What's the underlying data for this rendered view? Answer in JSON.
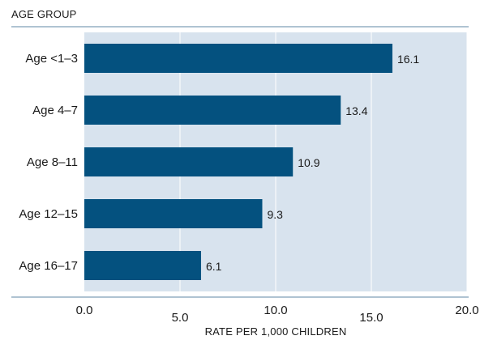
{
  "chart_data": {
    "type": "bar",
    "orientation": "horizontal",
    "ylabel": "AGE GROUP",
    "xlabel": "RATE PER 1,000 CHILDREN",
    "categories": [
      "Age <1–3",
      "Age 4–7",
      "Age 8–11",
      "Age 12–15",
      "Age 16–17"
    ],
    "values": [
      16.1,
      13.4,
      10.9,
      9.3,
      6.1
    ],
    "value_labels": [
      "16.1",
      "13.4",
      "10.9",
      "9.3",
      "6.1"
    ],
    "xlim": [
      0,
      20
    ],
    "xticks": [
      0,
      5,
      10,
      15,
      20
    ],
    "xtick_labels": [
      "0.0",
      "5.0",
      "10.0",
      "15.0",
      "20.0"
    ],
    "grid": "vertical",
    "colors": {
      "bar": "#04517f",
      "plot_background": "#d8e3ee",
      "axis_line": "#5f87a5",
      "grid": "#ffffff"
    }
  }
}
